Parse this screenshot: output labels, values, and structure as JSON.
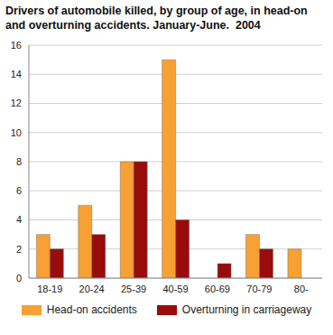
{
  "chart_data": {
    "type": "bar",
    "title": "Drivers of automobile killed, by group of age, in head-on and overturning accidents. January-June.  2004",
    "categories": [
      "18-19",
      "20-24",
      "25-39",
      "40-59",
      "60-69",
      "70-79",
      "80-"
    ],
    "series": [
      {
        "name": "Head-on accidents",
        "color": "#f7a033",
        "values": [
          3,
          5,
          8,
          15,
          0,
          3,
          2
        ]
      },
      {
        "name": "Overturning in carriageway",
        "color": "#980c0c",
        "values": [
          2,
          3,
          8,
          4,
          1,
          2,
          0
        ]
      }
    ],
    "ylim": [
      0,
      16
    ],
    "yticks": [
      0,
      2,
      4,
      6,
      8,
      10,
      12,
      14,
      16
    ],
    "grid": true,
    "legend": "bottom"
  }
}
